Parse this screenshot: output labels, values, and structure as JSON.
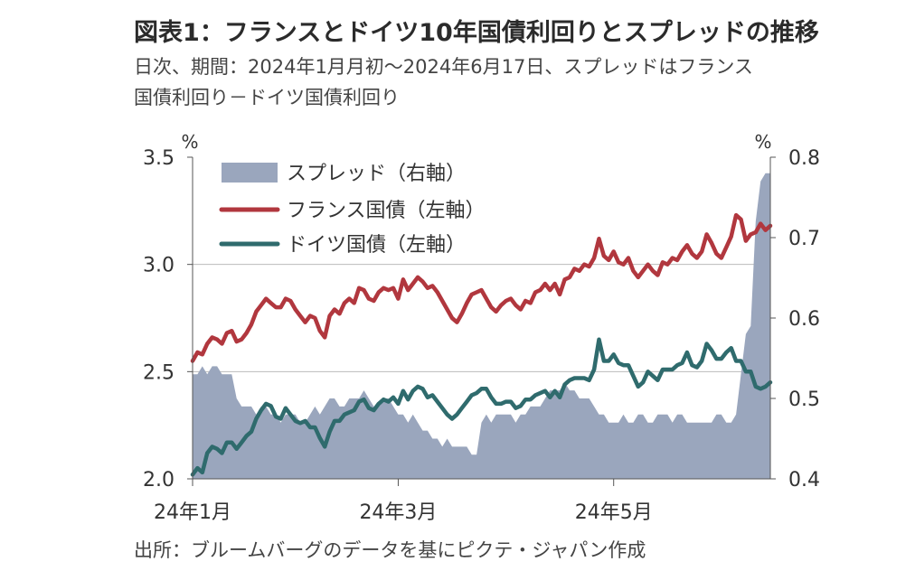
{
  "header": {
    "title": "図表1：フランスとドイツ10年国債利回りとスプレッドの推移",
    "subtitle_line1": "日次、期間：2024年1月月初～2024年6月17日、スプレッドはフランス",
    "subtitle_line2": "国債利回り－ドイツ国債利回り"
  },
  "footer": {
    "source": "出所：ブルームバーグのデータを基にピクテ・ジャパン作成"
  },
  "colors": {
    "spread": "#9aa6bd",
    "france": "#b1373e",
    "germany": "#2f6b6d",
    "axis": "#555555",
    "grid": "#bbbbbb"
  },
  "chart_data": {
    "type": "line+area",
    "left_axis": {
      "unit": "%",
      "ylim": [
        2.0,
        3.5
      ],
      "ticks": [
        "2.0",
        "2.5",
        "3.0",
        "3.5"
      ]
    },
    "right_axis": {
      "unit": "%",
      "ylim": [
        0.4,
        0.8
      ],
      "ticks": [
        "0.4",
        "0.5",
        "0.6",
        "0.7",
        "0.8"
      ]
    },
    "x_ticks": [
      {
        "label": "24年1月",
        "index": 0
      },
      {
        "label": "24年3月",
        "index": 42
      },
      {
        "label": "24年5月",
        "index": 86
      }
    ],
    "series": [
      {
        "name": "スプレッド（右軸）",
        "kind": "area",
        "axis": "right",
        "values": [
          0.53,
          0.53,
          0.54,
          0.53,
          0.54,
          0.54,
          0.53,
          0.53,
          0.53,
          0.5,
          0.49,
          0.49,
          0.49,
          0.48,
          0.49,
          0.49,
          0.48,
          0.48,
          0.47,
          0.48,
          0.48,
          0.48,
          0.47,
          0.47,
          0.48,
          0.49,
          0.48,
          0.49,
          0.5,
          0.5,
          0.49,
          0.49,
          0.5,
          0.5,
          0.5,
          0.51,
          0.5,
          0.49,
          0.49,
          0.5,
          0.5,
          0.49,
          0.48,
          0.48,
          0.47,
          0.48,
          0.47,
          0.46,
          0.46,
          0.45,
          0.45,
          0.44,
          0.45,
          0.44,
          0.44,
          0.44,
          0.44,
          0.43,
          0.43,
          0.47,
          0.48,
          0.47,
          0.48,
          0.48,
          0.48,
          0.48,
          0.47,
          0.48,
          0.48,
          0.49,
          0.49,
          0.49,
          0.5,
          0.51,
          0.51,
          0.51,
          0.52,
          0.51,
          0.51,
          0.5,
          0.5,
          0.5,
          0.49,
          0.48,
          0.48,
          0.47,
          0.47,
          0.47,
          0.48,
          0.47,
          0.47,
          0.48,
          0.48,
          0.47,
          0.47,
          0.48,
          0.48,
          0.48,
          0.47,
          0.48,
          0.48,
          0.47,
          0.47,
          0.47,
          0.47,
          0.47,
          0.47,
          0.48,
          0.48,
          0.47,
          0.47,
          0.48,
          0.53,
          0.58,
          0.59,
          0.72,
          0.77,
          0.78,
          0.78
        ]
      },
      {
        "name": "フランス国債（左軸）",
        "kind": "line",
        "axis": "left",
        "values": [
          2.55,
          2.59,
          2.58,
          2.63,
          2.66,
          2.65,
          2.63,
          2.68,
          2.69,
          2.64,
          2.65,
          2.68,
          2.72,
          2.78,
          2.81,
          2.84,
          2.82,
          2.8,
          2.8,
          2.84,
          2.83,
          2.79,
          2.76,
          2.73,
          2.76,
          2.75,
          2.69,
          2.66,
          2.76,
          2.79,
          2.77,
          2.82,
          2.84,
          2.82,
          2.89,
          2.88,
          2.84,
          2.83,
          2.87,
          2.89,
          2.88,
          2.89,
          2.84,
          2.93,
          2.88,
          2.91,
          2.94,
          2.92,
          2.89,
          2.9,
          2.87,
          2.83,
          2.79,
          2.75,
          2.73,
          2.77,
          2.82,
          2.86,
          2.87,
          2.88,
          2.84,
          2.8,
          2.78,
          2.81,
          2.83,
          2.84,
          2.81,
          2.79,
          2.83,
          2.82,
          2.87,
          2.88,
          2.91,
          2.88,
          2.91,
          2.86,
          2.93,
          2.94,
          2.98,
          2.97,
          3.0,
          2.99,
          3.03,
          3.12,
          3.04,
          3.02,
          3.06,
          3.01,
          3.0,
          3.03,
          2.97,
          2.94,
          2.97,
          3.0,
          2.97,
          2.95,
          3.01,
          3.0,
          3.03,
          3.02,
          3.06,
          3.09,
          3.05,
          3.03,
          3.06,
          3.14,
          3.1,
          3.05,
          3.03,
          3.08,
          3.13,
          3.23,
          3.21,
          3.11,
          3.14,
          3.15,
          3.19,
          3.16,
          3.18
        ]
      },
      {
        "name": "ドイツ国債（左軸）",
        "kind": "line",
        "axis": "left",
        "values": [
          2.02,
          2.05,
          2.03,
          2.12,
          2.15,
          2.14,
          2.12,
          2.17,
          2.17,
          2.14,
          2.17,
          2.2,
          2.22,
          2.28,
          2.32,
          2.35,
          2.34,
          2.29,
          2.28,
          2.33,
          2.3,
          2.27,
          2.26,
          2.27,
          2.24,
          2.24,
          2.19,
          2.15,
          2.22,
          2.27,
          2.27,
          2.3,
          2.31,
          2.32,
          2.36,
          2.37,
          2.33,
          2.32,
          2.35,
          2.37,
          2.36,
          2.38,
          2.35,
          2.41,
          2.37,
          2.41,
          2.43,
          2.42,
          2.38,
          2.39,
          2.36,
          2.33,
          2.3,
          2.28,
          2.3,
          2.33,
          2.36,
          2.39,
          2.4,
          2.42,
          2.42,
          2.38,
          2.35,
          2.35,
          2.36,
          2.36,
          2.33,
          2.34,
          2.37,
          2.37,
          2.39,
          2.4,
          2.41,
          2.38,
          2.41,
          2.38,
          2.44,
          2.46,
          2.47,
          2.47,
          2.47,
          2.46,
          2.51,
          2.65,
          2.55,
          2.55,
          2.58,
          2.54,
          2.53,
          2.53,
          2.48,
          2.43,
          2.45,
          2.5,
          2.48,
          2.46,
          2.51,
          2.51,
          2.51,
          2.53,
          2.54,
          2.59,
          2.53,
          2.52,
          2.55,
          2.63,
          2.6,
          2.56,
          2.56,
          2.59,
          2.61,
          2.55,
          2.55,
          2.5,
          2.5,
          2.43,
          2.42,
          2.43,
          2.45
        ]
      }
    ]
  }
}
